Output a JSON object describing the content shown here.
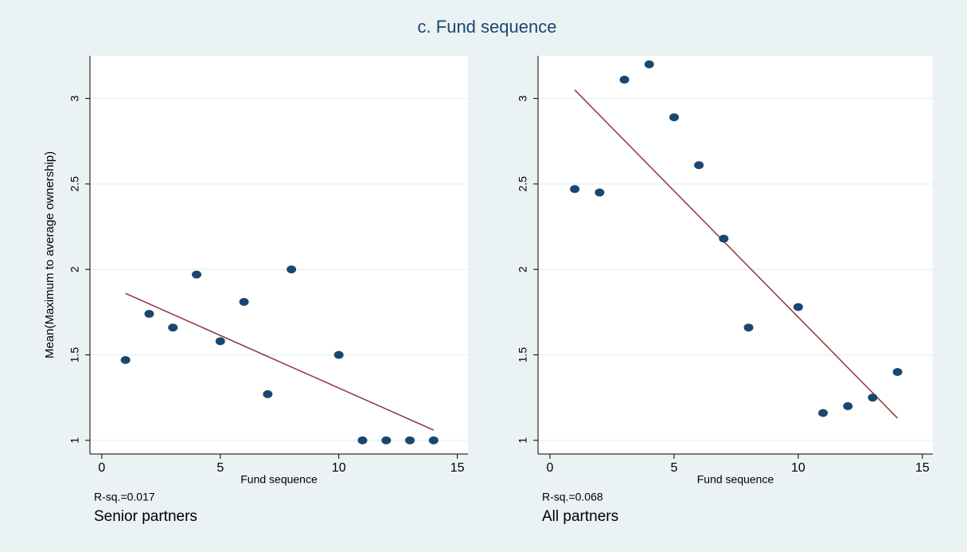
{
  "title": "c. Fund sequence",
  "chart_data": [
    {
      "type": "scatter",
      "subtitle": "Senior partners",
      "annotation": "R-sq.=0.017",
      "xlabel": "Fund sequence",
      "ylabel": "Mean(Maximum to average ownership)",
      "x": [
        1,
        2,
        3,
        4,
        5,
        6,
        7,
        8,
        10,
        11,
        12,
        13,
        14
      ],
      "values": [
        1.47,
        1.74,
        1.66,
        1.97,
        1.58,
        1.81,
        1.27,
        2.0,
        1.5,
        1,
        1,
        1,
        1
      ],
      "color": "#1a476f",
      "fit": {
        "x": [
          1,
          14
        ],
        "values": [
          1.86,
          1.06
        ],
        "color": "#90353b"
      },
      "xlim": [
        -0.5,
        15.45
      ],
      "ylim": [
        0.92,
        3.25
      ],
      "xticks": [
        0,
        5,
        10,
        15
      ],
      "yticks": [
        1,
        1.5,
        2,
        2.5,
        3
      ],
      "grid": true
    },
    {
      "type": "scatter",
      "subtitle": "All partners",
      "annotation": "R-sq.=0.068",
      "xlabel": "Fund sequence",
      "x": [
        1,
        2,
        3,
        4,
        5,
        6,
        7,
        8,
        10,
        11,
        12,
        13,
        14
      ],
      "values": [
        2.47,
        2.45,
        3.11,
        3.2,
        2.89,
        2.61,
        2.18,
        1.66,
        1.78,
        1.16,
        1.2,
        1.25,
        1.4
      ],
      "color": "#1a476f",
      "fit": {
        "x": [
          1,
          14
        ],
        "values": [
          3.05,
          1.13
        ],
        "color": "#90353b"
      },
      "xlim": [
        -0.48,
        15.42
      ],
      "ylim": [
        0.92,
        3.25
      ],
      "xticks": [
        0,
        5,
        10,
        15
      ],
      "yticks": [
        1,
        1.5,
        2,
        2.5,
        3
      ],
      "grid": true
    }
  ]
}
